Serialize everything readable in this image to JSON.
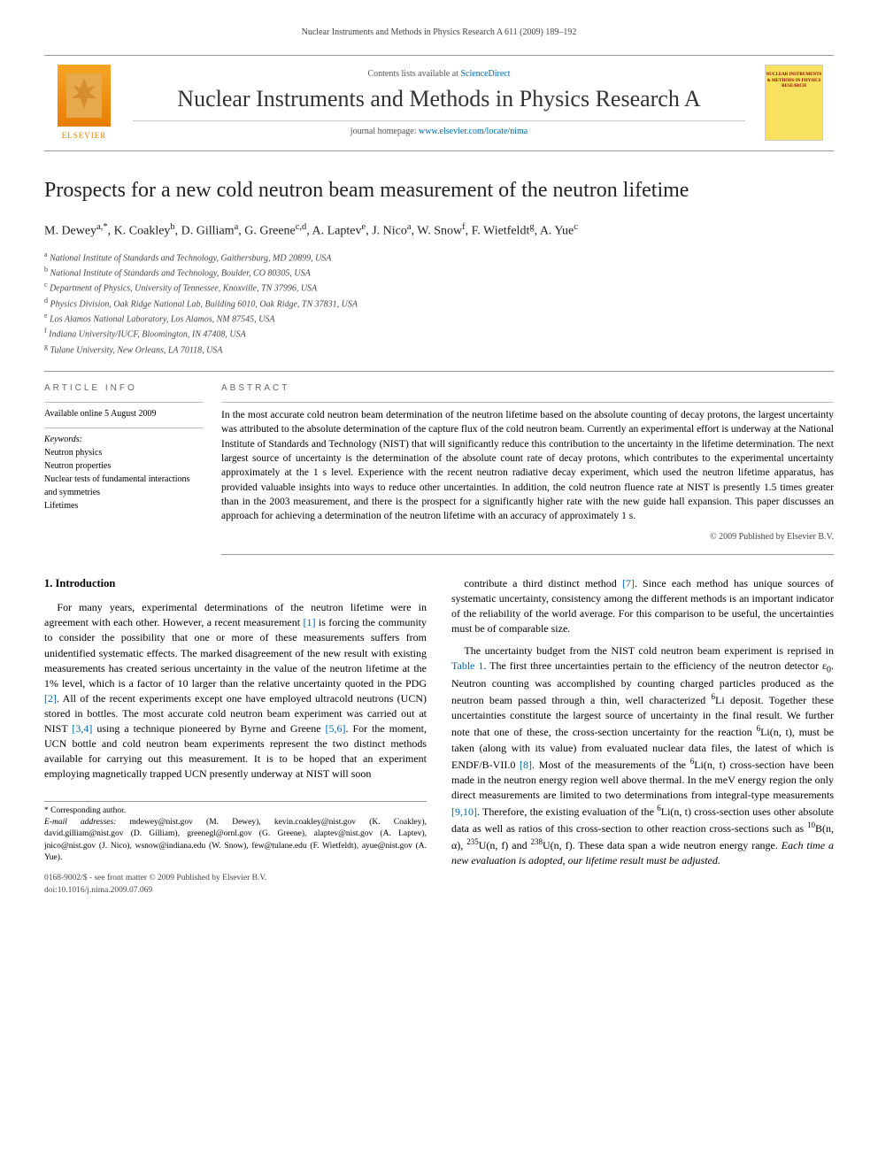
{
  "running_header": "Nuclear Instruments and Methods in Physics Research A 611 (2009) 189–192",
  "masthead": {
    "contents_prefix": "Contents lists available at ",
    "contents_link": "ScienceDirect",
    "journal_title": "Nuclear Instruments and Methods in Physics Research A",
    "homepage_prefix": "journal homepage: ",
    "homepage_url": "www.elsevier.com/locate/nima",
    "publisher_label": "ELSEVIER",
    "cover_text": "NUCLEAR INSTRUMENTS & METHODS IN PHYSICS RESEARCH"
  },
  "article": {
    "title": "Prospects for a new cold neutron beam measurement of the neutron lifetime",
    "authors_html": "M. Dewey<sup>a,*</sup>, K. Coakley<sup>b</sup>, D. Gilliam<sup>a</sup>, G. Greene<sup>c,d</sup>, A. Laptev<sup>e</sup>, J. Nico<sup>a</sup>, W. Snow<sup>f</sup>, F. Wietfeldt<sup>g</sup>, A. Yue<sup>c</sup>",
    "affiliations": [
      {
        "sup": "a",
        "text": "National Institute of Standards and Technology, Gaithersburg, MD 20899, USA"
      },
      {
        "sup": "b",
        "text": "National Institute of Standards and Technology, Boulder, CO 80305, USA"
      },
      {
        "sup": "c",
        "text": "Department of Physics, University of Tennessee, Knoxville, TN 37996, USA"
      },
      {
        "sup": "d",
        "text": "Physics Division, Oak Ridge National Lab, Building 6010, Oak Ridge, TN 37831, USA"
      },
      {
        "sup": "e",
        "text": "Los Alamos National Laboratory, Los Alamos, NM 87545, USA"
      },
      {
        "sup": "f",
        "text": "Indiana University/IUCF, Bloomington, IN 47408, USA"
      },
      {
        "sup": "g",
        "text": "Tulane University, New Orleans, LA 70118, USA"
      }
    ]
  },
  "article_info": {
    "heading": "ARTICLE INFO",
    "online_date": "Available online 5 August 2009",
    "keywords_label": "Keywords:",
    "keywords": [
      "Neutron physics",
      "Neutron properties",
      "Nuclear tests of fundamental interactions and symmetries",
      "Lifetimes"
    ]
  },
  "abstract": {
    "heading": "ABSTRACT",
    "text": "In the most accurate cold neutron beam determination of the neutron lifetime based on the absolute counting of decay protons, the largest uncertainty was attributed to the absolute determination of the capture flux of the cold neutron beam. Currently an experimental effort is underway at the National Institute of Standards and Technology (NIST) that will significantly reduce this contribution to the uncertainty in the lifetime determination. The next largest source of uncertainty is the determination of the absolute count rate of decay protons, which contributes to the experimental uncertainty approximately at the 1 s level. Experience with the recent neutron radiative decay experiment, which used the neutron lifetime apparatus, has provided valuable insights into ways to reduce other uncertainties. In addition, the cold neutron fluence rate at NIST is presently 1.5 times greater than in the 2003 measurement, and there is the prospect for a significantly higher rate with the new guide hall expansion. This paper discusses an approach for achieving a determination of the neutron lifetime with an accuracy of approximately 1 s.",
    "copyright": "© 2009 Published by Elsevier B.V."
  },
  "body": {
    "section_number": "1.",
    "section_title": "Introduction",
    "left_paras": [
      "For many years, experimental determinations of the neutron lifetime were in agreement with each other. However, a recent measurement <a class=\"cite\">[1]</a> is forcing the community to consider the possibility that one or more of these measurements suffers from unidentified systematic effects. The marked disagreement of the new result with existing measurements has created serious uncertainty in the value of the neutron lifetime at the 1% level, which is a factor of 10 larger than the relative uncertainty quoted in the PDG <a class=\"cite\">[2]</a>. All of the recent experiments except one have employed ultracold neutrons (UCN) stored in bottles. The most accurate cold neutron beam experiment was carried out at NIST <a class=\"cite\">[3,4]</a> using a technique pioneered by Byrne and Greene <a class=\"cite\">[5,6]</a>. For the moment, UCN bottle and cold neutron beam experiments represent the two distinct methods available for carrying out this measurement. It is to be hoped that an experiment employing magnetically trapped UCN presently underway at NIST will soon"
    ],
    "right_paras": [
      "contribute a third distinct method <a class=\"cite\">[7]</a>. Since each method has unique sources of systematic uncertainty, consistency among the different methods is an important indicator of the reliability of the world average. For this comparison to be useful, the uncertainties must be of comparable size.",
      "The uncertainty budget from the NIST cold neutron beam experiment is reprised in <a class=\"cite\">Table 1</a>. The first three uncertainties pertain to the efficiency of the neutron detector ε<sub>0</sub>. Neutron counting was accomplished by counting charged particles produced as the neutron beam passed through a thin, well characterized <sup>6</sup>Li deposit. Together these uncertainties constitute the largest source of uncertainty in the final result. We further note that one of these, the cross-section uncertainty for the reaction <sup>6</sup>Li(n, t), must be taken (along with its value) from evaluated nuclear data files, the latest of which is ENDF/B-VII.0 <a class=\"cite\">[8]</a>. Most of the measurements of the <sup>6</sup>Li(n, t) cross-section have been made in the neutron energy region well above thermal. In the meV energy region the only direct measurements are limited to two determinations from integral-type measurements <a class=\"cite\">[9,10]</a>. Therefore, the existing evaluation of the <sup>6</sup>Li(n, t) cross-section uses other absolute data as well as ratios of this cross-section to other reaction cross-sections such as <sup>10</sup>B(n, α), <sup>235</sup>U(n, f) and <sup>238</sup>U(n, f). These data span a wide neutron energy range. <span class=\"italic\">Each time a new evaluation is adopted, our lifetime result must be adjusted.</span>"
    ]
  },
  "footnotes": {
    "corresponding_marker": "* Corresponding author.",
    "email_label": "E-mail addresses:",
    "emails": "mdewey@nist.gov (M. Dewey), kevin.coakley@nist.gov (K. Coakley), david.gilliam@nist.gov (D. Gilliam), greenegl@ornl.gov (G. Greene), alaptev@nist.gov (A. Laptev), jnico@nist.gov (J. Nico), wsnow@indiana.edu (W. Snow), few@tulane.edu (F. Wietfeldt), ayue@nist.gov (A. Yue)."
  },
  "doi_block": {
    "line1": "0168-9002/$ - see front matter © 2009 Published by Elsevier B.V.",
    "line2": "doi:10.1016/j.nima.2009.07.069"
  },
  "colors": {
    "link": "#0066aa",
    "elsevier_orange": "#e67e00",
    "cover_yellow": "#f8e060",
    "rule": "#999999",
    "text": "#000000"
  },
  "typography": {
    "body_fontsize_pt": 12,
    "journal_title_fontsize_pt": 26,
    "article_title_fontsize_pt": 24,
    "abstract_fontsize_pt": 11.5,
    "footnote_fontsize_pt": 9.5
  }
}
